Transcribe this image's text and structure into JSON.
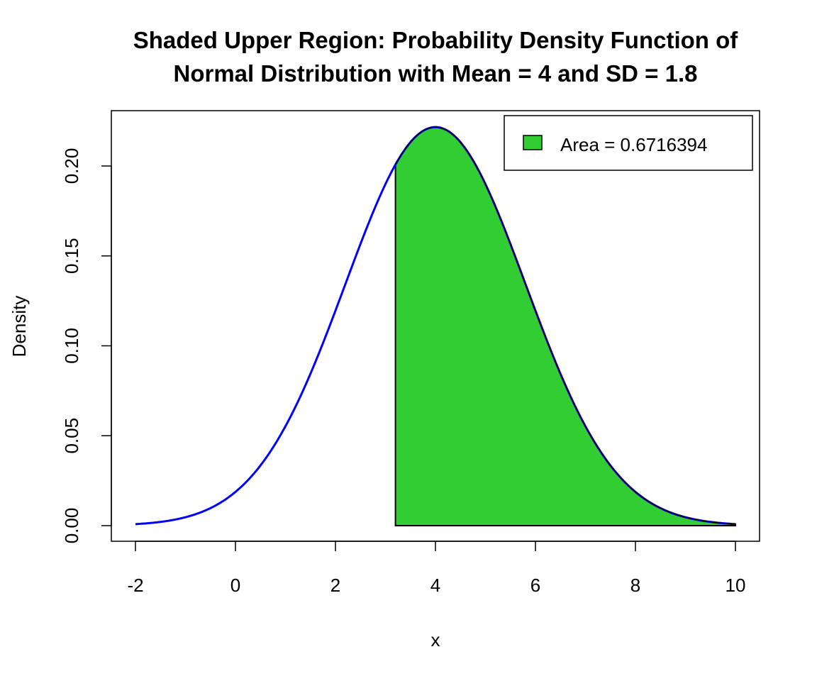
{
  "chart_data": {
    "type": "area",
    "title": [
      "Shaded Upper Region: Probability Density Function of",
      "Normal Distribution with Mean = 4 and SD = 1.8"
    ],
    "xlabel": "x",
    "ylabel": "Density",
    "mean": 4,
    "sd": 1.8,
    "xlim": [
      -2,
      10
    ],
    "ylim": [
      0,
      0.22
    ],
    "shaded_from": 3.2,
    "shaded_to": 10,
    "x_ticks": [
      -2,
      0,
      2,
      4,
      6,
      8,
      10
    ],
    "x_tick_labels": [
      "-2",
      "0",
      "2",
      "4",
      "6",
      "8",
      "10"
    ],
    "y_ticks": [
      0,
      0.05,
      0.1,
      0.15,
      0.2
    ],
    "y_tick_labels": [
      "0.00",
      "0.05",
      "0.10",
      "0.15",
      "0.20"
    ],
    "legend": {
      "label": "Area = 0.6716394",
      "position": "top-right"
    },
    "colors": {
      "curve": "#0000FF",
      "fill": "#32CD32",
      "border": "#000000"
    },
    "grid": false
  }
}
